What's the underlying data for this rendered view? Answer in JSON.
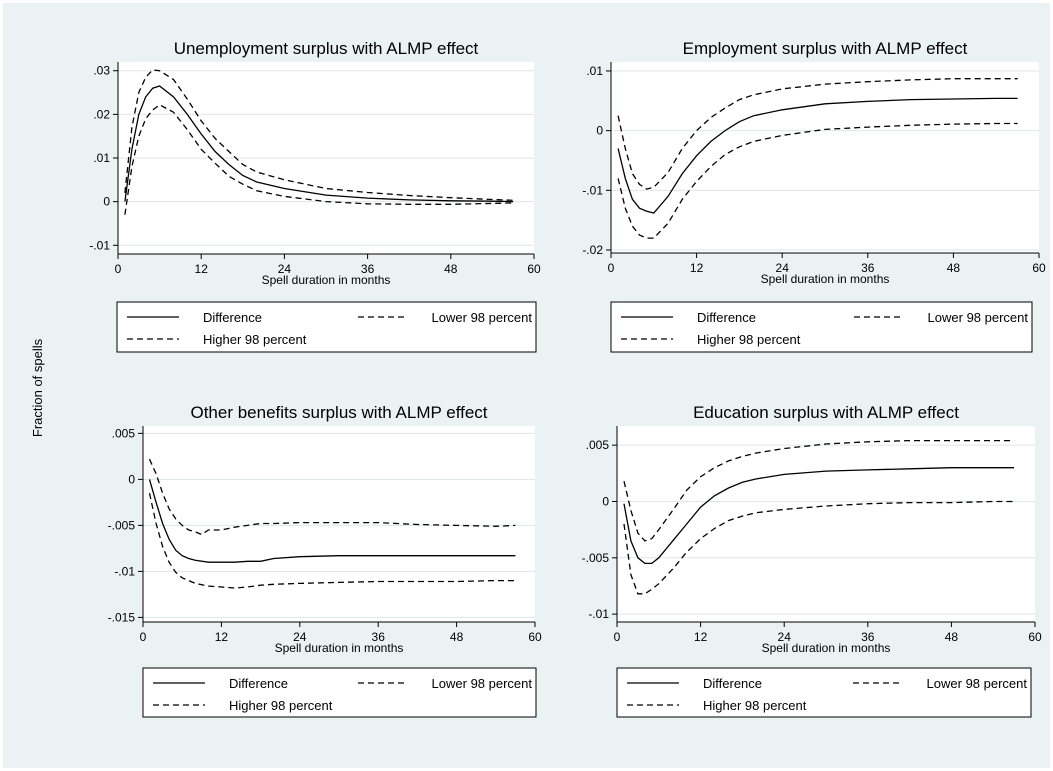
{
  "figure": {
    "ylabel": "Fraction of spells",
    "xlabel": "Spell duration in months",
    "legend": [
      "Difference",
      "Lower 98 percent",
      "Higher 98 percent"
    ]
  },
  "chart_data": [
    {
      "type": "line",
      "title": "Unemployment surplus with ALMP effect",
      "xlabel": "Spell duration in months",
      "ylabel": "Fraction of spells",
      "xlim": [
        0,
        60
      ],
      "ylim": [
        -0.012,
        0.032
      ],
      "xticks": [
        0,
        12,
        24,
        36,
        48,
        60
      ],
      "yticks": [
        -0.01,
        0,
        0.01,
        0.02,
        0.03
      ],
      "ytick_labels": [
        "-.01",
        "0",
        ".01",
        ".02",
        ".03"
      ],
      "grid": true,
      "legend_position": "bottom",
      "series": [
        {
          "name": "Difference",
          "style": "solid",
          "x": [
            1,
            2,
            3,
            4,
            5,
            6,
            8,
            10,
            12,
            14,
            16,
            18,
            20,
            24,
            30,
            36,
            42,
            48,
            54,
            57
          ],
          "y": [
            0,
            0.012,
            0.02,
            0.024,
            0.026,
            0.0265,
            0.024,
            0.02,
            0.0155,
            0.0115,
            0.0085,
            0.006,
            0.0045,
            0.003,
            0.0015,
            0.0008,
            0.0004,
            0.0002,
            0.0001,
            0
          ]
        },
        {
          "name": "Lower 98 percent",
          "style": "dashed",
          "x": [
            1,
            2,
            3,
            4,
            5,
            6,
            8,
            10,
            12,
            14,
            16,
            18,
            20,
            24,
            30,
            36,
            42,
            48,
            54,
            57
          ],
          "y": [
            -0.003,
            0.008,
            0.015,
            0.019,
            0.021,
            0.0222,
            0.0205,
            0.0165,
            0.012,
            0.0088,
            0.0058,
            0.004,
            0.0025,
            0.0012,
            0,
            -0.0005,
            -0.0006,
            -0.0006,
            -0.0004,
            -0.0003
          ]
        },
        {
          "name": "Higher 98 percent",
          "style": "dashed",
          "x": [
            1,
            2,
            3,
            4,
            5,
            6,
            8,
            10,
            12,
            14,
            16,
            18,
            20,
            24,
            30,
            36,
            42,
            48,
            54,
            57
          ],
          "y": [
            0.002,
            0.017,
            0.025,
            0.0285,
            0.0302,
            0.03,
            0.028,
            0.0235,
            0.0185,
            0.0145,
            0.0115,
            0.0085,
            0.0068,
            0.005,
            0.003,
            0.0021,
            0.0014,
            0.0009,
            0.0005,
            0.0003
          ]
        }
      ]
    },
    {
      "type": "line",
      "title": "Employment surplus with ALMP effect",
      "xlabel": "Spell duration in months",
      "ylabel": "Fraction of spells",
      "xlim": [
        0,
        60
      ],
      "ylim": [
        -0.0205,
        0.0115
      ],
      "xticks": [
        0,
        12,
        24,
        36,
        48,
        60
      ],
      "yticks": [
        -0.02,
        -0.01,
        0,
        0.01
      ],
      "ytick_labels": [
        "-.02",
        "-.01",
        "0",
        ".01"
      ],
      "grid": true,
      "legend_position": "bottom",
      "series": [
        {
          "name": "Difference",
          "style": "solid",
          "x": [
            1,
            2,
            3,
            4,
            5,
            6,
            8,
            10,
            12,
            14,
            16,
            18,
            20,
            24,
            30,
            36,
            42,
            48,
            54,
            57
          ],
          "y": [
            -0.003,
            -0.008,
            -0.0115,
            -0.013,
            -0.0135,
            -0.0138,
            -0.011,
            -0.0072,
            -0.0042,
            -0.0018,
            0,
            0.0015,
            0.0025,
            0.0035,
            0.0045,
            0.0049,
            0.0052,
            0.0053,
            0.0054,
            0.0054
          ]
        },
        {
          "name": "Lower 98 percent",
          "style": "dashed",
          "x": [
            1,
            2,
            3,
            4,
            5,
            6,
            8,
            10,
            12,
            14,
            16,
            18,
            20,
            24,
            30,
            36,
            42,
            48,
            54,
            57
          ],
          "y": [
            -0.008,
            -0.013,
            -0.016,
            -0.0175,
            -0.018,
            -0.018,
            -0.0155,
            -0.0115,
            -0.0085,
            -0.006,
            -0.004,
            -0.0027,
            -0.0018,
            -0.0008,
            0.0002,
            0.0006,
            0.0009,
            0.0011,
            0.0012,
            0.0012
          ]
        },
        {
          "name": "Higher 98 percent",
          "style": "dashed",
          "x": [
            1,
            2,
            3,
            4,
            5,
            6,
            8,
            10,
            12,
            14,
            16,
            18,
            20,
            24,
            30,
            36,
            42,
            48,
            54,
            57
          ],
          "y": [
            0.0025,
            -0.003,
            -0.0072,
            -0.009,
            -0.0098,
            -0.0095,
            -0.007,
            -0.003,
            0,
            0.0022,
            0.0038,
            0.0052,
            0.006,
            0.007,
            0.0078,
            0.0082,
            0.0085,
            0.0087,
            0.0087,
            0.0087
          ]
        }
      ]
    },
    {
      "type": "line",
      "title": "Other benefits surplus with ALMP effect",
      "xlabel": "Spell duration in months",
      "ylabel": "Fraction of spells",
      "xlim": [
        0,
        60
      ],
      "ylim": [
        -0.0155,
        0.0058
      ],
      "xticks": [
        0,
        12,
        24,
        36,
        48,
        60
      ],
      "yticks": [
        -0.015,
        -0.01,
        -0.005,
        0,
        0.005
      ],
      "ytick_labels": [
        "-.015",
        "-.01",
        "-.005",
        "0",
        ".005"
      ],
      "grid": true,
      "legend_position": "bottom",
      "series": [
        {
          "name": "Difference",
          "style": "solid",
          "x": [
            1,
            2,
            3,
            4,
            5,
            6,
            7,
            8,
            10,
            12,
            14,
            16,
            18,
            20,
            24,
            30,
            36,
            42,
            48,
            54,
            57
          ],
          "y": [
            0,
            -0.0025,
            -0.0048,
            -0.0065,
            -0.0077,
            -0.0083,
            -0.0086,
            -0.0088,
            -0.009,
            -0.009,
            -0.009,
            -0.0089,
            -0.0089,
            -0.0086,
            -0.0084,
            -0.0083,
            -0.0083,
            -0.0083,
            -0.0083,
            -0.0083,
            -0.0083
          ]
        },
        {
          "name": "Lower 98 percent",
          "style": "dashed",
          "x": [
            1,
            2,
            3,
            4,
            5,
            6,
            7,
            8,
            10,
            12,
            14,
            16,
            18,
            20,
            24,
            30,
            36,
            42,
            48,
            54,
            57
          ],
          "y": [
            -0.0015,
            -0.0048,
            -0.0073,
            -0.009,
            -0.0101,
            -0.0107,
            -0.011,
            -0.0113,
            -0.0116,
            -0.0117,
            -0.0118,
            -0.0117,
            -0.0115,
            -0.0114,
            -0.0113,
            -0.0112,
            -0.0111,
            -0.0111,
            -0.0111,
            -0.011,
            -0.011
          ]
        },
        {
          "name": "Higher 98 percent",
          "style": "dashed",
          "x": [
            1,
            2,
            3,
            4,
            5,
            6,
            7,
            8,
            9,
            10,
            12,
            14,
            16,
            18,
            20,
            24,
            30,
            36,
            42,
            48,
            54,
            57
          ],
          "y": [
            0.0022,
            0.0006,
            -0.0015,
            -0.0032,
            -0.0043,
            -0.005,
            -0.0055,
            -0.0057,
            -0.006,
            -0.0055,
            -0.0055,
            -0.0052,
            -0.005,
            -0.0048,
            -0.0048,
            -0.0047,
            -0.0047,
            -0.0047,
            -0.0049,
            -0.005,
            -0.0051,
            -0.005
          ]
        }
      ]
    },
    {
      "type": "line",
      "title": "Education surplus with ALMP effect",
      "xlabel": "Spell duration in months",
      "ylabel": "Fraction of spells",
      "xlim": [
        0,
        60
      ],
      "ylim": [
        -0.0107,
        0.0067
      ],
      "xticks": [
        0,
        12,
        24,
        36,
        48,
        60
      ],
      "yticks": [
        -0.01,
        -0.005,
        0,
        0.005
      ],
      "ytick_labels": [
        "-.01",
        "-.005",
        "0",
        ".005"
      ],
      "grid": true,
      "legend_position": "bottom",
      "series": [
        {
          "name": "Difference",
          "style": "solid",
          "x": [
            1,
            2,
            3,
            4,
            5,
            6,
            8,
            10,
            12,
            14,
            16,
            18,
            20,
            24,
            30,
            36,
            42,
            48,
            54,
            57
          ],
          "y": [
            -0.0002,
            -0.0035,
            -0.005,
            -0.0055,
            -0.0055,
            -0.005,
            -0.0035,
            -0.002,
            -0.0005,
            0.0005,
            0.0012,
            0.0017,
            0.002,
            0.0024,
            0.0027,
            0.0028,
            0.0029,
            0.003,
            0.003,
            0.003
          ]
        },
        {
          "name": "Lower 98 percent",
          "style": "dashed",
          "x": [
            1,
            2,
            3,
            4,
            5,
            6,
            8,
            10,
            12,
            14,
            16,
            18,
            20,
            24,
            30,
            36,
            42,
            48,
            54,
            57
          ],
          "y": [
            -0.002,
            -0.0065,
            -0.0082,
            -0.0082,
            -0.0078,
            -0.0073,
            -0.006,
            -0.0045,
            -0.0033,
            -0.0024,
            -0.0017,
            -0.0013,
            -0.001,
            -0.0007,
            -0.0004,
            -0.0002,
            -0.0001,
            -0.0001,
            0,
            0
          ]
        },
        {
          "name": "Higher 98 percent",
          "style": "dashed",
          "x": [
            1,
            2,
            3,
            4,
            5,
            6,
            8,
            10,
            12,
            14,
            16,
            18,
            20,
            24,
            30,
            36,
            42,
            48,
            54,
            57
          ],
          "y": [
            0.0018,
            -0.0008,
            -0.0028,
            -0.0035,
            -0.0033,
            -0.0025,
            -0.0008,
            0.001,
            0.0022,
            0.003,
            0.0036,
            0.004,
            0.0043,
            0.0047,
            0.0051,
            0.0053,
            0.0054,
            0.0054,
            0.0054,
            0.0054
          ]
        }
      ]
    }
  ]
}
